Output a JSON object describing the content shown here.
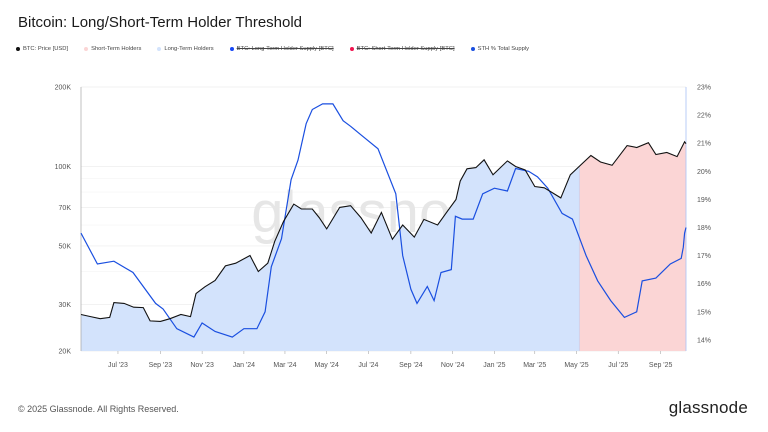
{
  "title": "Bitcoin: Long/Short-Term Holder Threshold",
  "legend": [
    {
      "label": "BTC: Price [USD]",
      "color": "#111111",
      "struck": false
    },
    {
      "label": "Short-Term Holders",
      "color": "#fbd5d5",
      "struck": false
    },
    {
      "label": "Long-Term Holders",
      "color": "#d3e3fc",
      "struck": false
    },
    {
      "label": "BTC: Long-Term Holder Supply [BTC]",
      "color": "#1747f5",
      "struck": true
    },
    {
      "label": "BTC: Short-Term Holder Supply [BTC]",
      "color": "#f0144f",
      "struck": true
    },
    {
      "label": "STH % Total Supply",
      "color": "#1a4fe0",
      "struck": false
    }
  ],
  "watermark": "glassnode",
  "footer": "© 2025 Glassnode. All Rights Reserved.",
  "logo": "glassnode",
  "chart_data": {
    "type": "line",
    "title": "Bitcoin: Long/Short-Term Holder Threshold",
    "x_ticks": [
      "Jul '23",
      "Sep '23",
      "Nov '23",
      "Jan '24",
      "Mar '24",
      "May '24",
      "Jul '24",
      "Sep '24",
      "Nov '24",
      "Jan '25",
      "Mar '25",
      "May '25",
      "Jul '25",
      "Sep '25"
    ],
    "x_tick_dates": [
      "2023-07-01",
      "2023-09-01",
      "2023-11-01",
      "2024-01-01",
      "2024-03-01",
      "2024-05-01",
      "2024-07-01",
      "2024-09-01",
      "2024-11-01",
      "2025-01-01",
      "2025-03-01",
      "2025-05-01",
      "2025-07-01",
      "2025-09-01"
    ],
    "xlim": [
      "2023-05-08",
      "2025-10-08"
    ],
    "y_left": {
      "scale": "log",
      "range": [
        20000,
        200000
      ],
      "ticks": [
        {
          "v": 20000,
          "l": "20K"
        },
        {
          "v": 30000,
          "l": "30K"
        },
        {
          "v": 50000,
          "l": "50K"
        },
        {
          "v": 70000,
          "l": "70K"
        },
        {
          "v": 100000,
          "l": "100K"
        },
        {
          "v": 200000,
          "l": "200K"
        }
      ]
    },
    "y_right": {
      "scale": "linear",
      "range": [
        13.6,
        23
      ],
      "ticks": [
        "14%",
        "15%",
        "16%",
        "17%",
        "18%",
        "19%",
        "20%",
        "21%",
        "22%",
        "23%"
      ],
      "tick_values": [
        14,
        15,
        16,
        17,
        18,
        19,
        20,
        21,
        22,
        23
      ]
    },
    "threshold_date": "2025-05-05",
    "fill_colors": {
      "long_term": "#d3e3fc",
      "short_term": "#fbd5d5"
    },
    "grid": true,
    "legend_position": "top-left",
    "series": [
      {
        "name": "BTC: Price [USD]",
        "axis": "left",
        "color": "#111111",
        "points": [
          [
            "2023-05-08",
            27500
          ],
          [
            "2023-05-22",
            27000
          ],
          [
            "2023-06-05",
            26500
          ],
          [
            "2023-06-19",
            26800
          ],
          [
            "2023-06-25",
            30500
          ],
          [
            "2023-07-10",
            30300
          ],
          [
            "2023-07-24",
            29300
          ],
          [
            "2023-08-07",
            29200
          ],
          [
            "2023-08-17",
            26000
          ],
          [
            "2023-09-01",
            25900
          ],
          [
            "2023-09-15",
            26500
          ],
          [
            "2023-10-01",
            27500
          ],
          [
            "2023-10-15",
            27000
          ],
          [
            "2023-10-23",
            33000
          ],
          [
            "2023-11-05",
            35000
          ],
          [
            "2023-11-20",
            37000
          ],
          [
            "2023-12-05",
            42000
          ],
          [
            "2023-12-20",
            43000
          ],
          [
            "2024-01-10",
            46000
          ],
          [
            "2024-01-22",
            40000
          ],
          [
            "2024-02-05",
            43000
          ],
          [
            "2024-02-15",
            52000
          ],
          [
            "2024-02-28",
            62000
          ],
          [
            "2024-03-14",
            72000
          ],
          [
            "2024-03-25",
            69000
          ],
          [
            "2024-04-10",
            69000
          ],
          [
            "2024-04-20",
            64000
          ],
          [
            "2024-05-01",
            58000
          ],
          [
            "2024-05-20",
            70000
          ],
          [
            "2024-06-05",
            71000
          ],
          [
            "2024-06-20",
            64000
          ],
          [
            "2024-07-05",
            56000
          ],
          [
            "2024-07-20",
            67000
          ],
          [
            "2024-08-05",
            53000
          ],
          [
            "2024-08-20",
            60000
          ],
          [
            "2024-09-06",
            54000
          ],
          [
            "2024-09-20",
            63000
          ],
          [
            "2024-10-10",
            60000
          ],
          [
            "2024-10-25",
            68000
          ],
          [
            "2024-11-06",
            75000
          ],
          [
            "2024-11-12",
            88000
          ],
          [
            "2024-11-22",
            98000
          ],
          [
            "2024-12-05",
            99000
          ],
          [
            "2024-12-17",
            106000
          ],
          [
            "2024-12-30",
            93000
          ],
          [
            "2025-01-20",
            105000
          ],
          [
            "2025-02-01",
            100000
          ],
          [
            "2025-02-15",
            97000
          ],
          [
            "2025-03-01",
            84000
          ],
          [
            "2025-03-15",
            83000
          ],
          [
            "2025-04-08",
            76000
          ],
          [
            "2025-04-22",
            93000
          ],
          [
            "2025-05-10",
            103000
          ],
          [
            "2025-05-22",
            110000
          ],
          [
            "2025-06-05",
            104000
          ],
          [
            "2025-06-22",
            101000
          ],
          [
            "2025-07-14",
            120000
          ],
          [
            "2025-07-28",
            118000
          ],
          [
            "2025-08-14",
            123000
          ],
          [
            "2025-08-25",
            111000
          ],
          [
            "2025-09-10",
            113000
          ],
          [
            "2025-09-25",
            109000
          ],
          [
            "2025-10-06",
            124000
          ],
          [
            "2025-10-08",
            122000
          ]
        ]
      },
      {
        "name": "STH % Total Supply",
        "axis": "right",
        "color": "#1a4fe0",
        "points": [
          [
            "2023-05-08",
            17.8
          ],
          [
            "2023-06-01",
            16.7
          ],
          [
            "2023-06-25",
            16.8
          ],
          [
            "2023-07-23",
            16.4
          ],
          [
            "2023-08-25",
            15.3
          ],
          [
            "2023-09-05",
            15.1
          ],
          [
            "2023-09-25",
            14.4
          ],
          [
            "2023-10-20",
            14.1
          ],
          [
            "2023-11-01",
            14.6
          ],
          [
            "2023-11-20",
            14.3
          ],
          [
            "2023-12-15",
            14.1
          ],
          [
            "2024-01-01",
            14.4
          ],
          [
            "2024-01-20",
            14.4
          ],
          [
            "2024-02-01",
            15.0
          ],
          [
            "2024-02-10",
            16.6
          ],
          [
            "2024-02-25",
            17.6
          ],
          [
            "2024-03-10",
            19.7
          ],
          [
            "2024-03-20",
            20.4
          ],
          [
            "2024-04-01",
            21.7
          ],
          [
            "2024-04-10",
            22.2
          ],
          [
            "2024-04-25",
            22.4
          ],
          [
            "2024-05-10",
            22.4
          ],
          [
            "2024-05-25",
            21.8
          ],
          [
            "2024-06-05",
            21.6
          ],
          [
            "2024-06-20",
            21.3
          ],
          [
            "2024-07-15",
            20.8
          ],
          [
            "2024-08-10",
            19.2
          ],
          [
            "2024-08-20",
            17.0
          ],
          [
            "2024-09-01",
            15.8
          ],
          [
            "2024-09-10",
            15.3
          ],
          [
            "2024-09-25",
            15.9
          ],
          [
            "2024-10-05",
            15.4
          ],
          [
            "2024-10-15",
            16.4
          ],
          [
            "2024-10-30",
            16.5
          ],
          [
            "2024-11-05",
            18.4
          ],
          [
            "2024-11-15",
            18.3
          ],
          [
            "2024-12-01",
            18.3
          ],
          [
            "2024-12-15",
            19.2
          ],
          [
            "2025-01-01",
            19.4
          ],
          [
            "2025-01-20",
            19.3
          ],
          [
            "2025-02-01",
            20.1
          ],
          [
            "2025-02-20",
            20.0
          ],
          [
            "2025-03-05",
            19.8
          ],
          [
            "2025-03-20",
            19.4
          ],
          [
            "2025-04-10",
            18.5
          ],
          [
            "2025-04-25",
            18.3
          ],
          [
            "2025-05-15",
            17.0
          ],
          [
            "2025-06-01",
            16.1
          ],
          [
            "2025-06-20",
            15.4
          ],
          [
            "2025-07-10",
            14.8
          ],
          [
            "2025-07-28",
            15.0
          ],
          [
            "2025-08-05",
            16.1
          ],
          [
            "2025-08-25",
            16.2
          ],
          [
            "2025-09-15",
            16.7
          ],
          [
            "2025-10-01",
            16.9
          ],
          [
            "2025-10-04",
            17.3
          ],
          [
            "2025-10-06",
            17.8
          ],
          [
            "2025-10-08",
            18.0
          ]
        ]
      }
    ]
  }
}
